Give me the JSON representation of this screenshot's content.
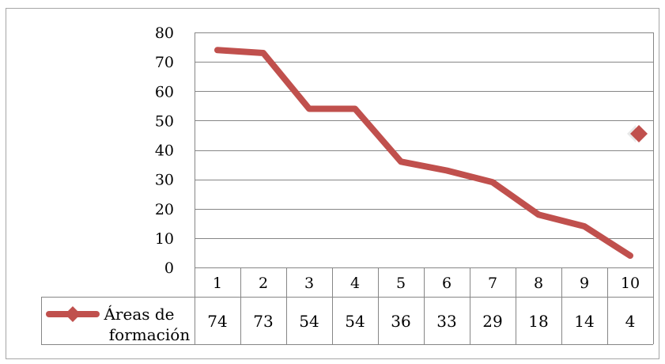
{
  "chart_data": {
    "type": "line",
    "categories": [
      "1",
      "2",
      "3",
      "4",
      "5",
      "6",
      "7",
      "8",
      "9",
      "10"
    ],
    "series": [
      {
        "name": "Áreas de formación",
        "name_lines": [
          "Áreas de",
          "formación"
        ],
        "values": [
          74,
          73,
          54,
          54,
          36,
          33,
          29,
          18,
          14,
          4
        ],
        "value_labels": [
          "74",
          "73",
          "54",
          "54",
          "36",
          "33",
          "29",
          "18",
          "14",
          "4"
        ]
      }
    ],
    "y_ticks": [
      "0",
      "10",
      "20",
      "30",
      "40",
      "50",
      "60",
      "70",
      "80"
    ],
    "ylim": [
      0,
      80
    ],
    "grid": true,
    "legend": "data-table-left",
    "data_table": true,
    "colors": {
      "line": "#c0504d",
      "grid": "#868686",
      "border": "#868686",
      "frame": "#a6a6a6",
      "text": "#000000"
    }
  }
}
